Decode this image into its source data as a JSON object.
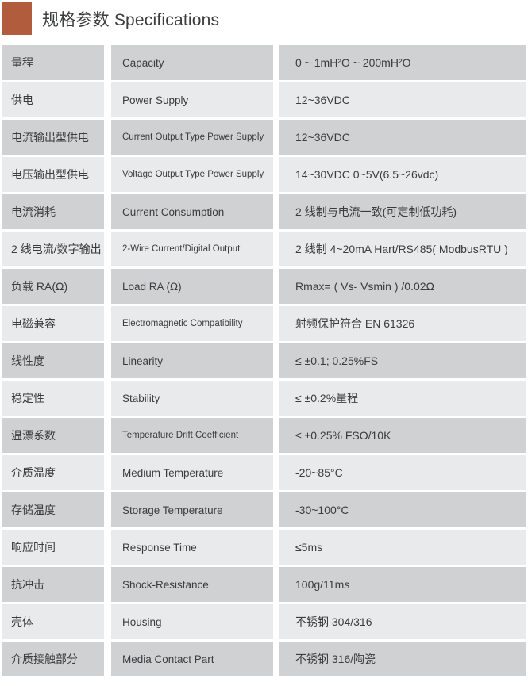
{
  "header": {
    "title": "规格参数 Specifications",
    "accent_color": "#b05c3d"
  },
  "table": {
    "columns": [
      "chinese_label",
      "english_label",
      "value"
    ],
    "colors": {
      "row_dark": "#d0d1d3",
      "row_light": "#e9eaeb",
      "text": "#3b3c3e"
    },
    "rows": [
      {
        "zh": "量程",
        "en": "Capacity",
        "value": "0 ~ 1mH²O ~ 200mH²O"
      },
      {
        "zh": "供电",
        "en": "Power Supply",
        "value": "12~36VDC"
      },
      {
        "zh": "电流输出型供电",
        "en": "Current Output Type Power Supply",
        "value": "12~36VDC"
      },
      {
        "zh": "电压输出型供电",
        "en": "Voltage Output Type Power Supply",
        "value": "14~30VDC 0~5V(6.5~26vdc)"
      },
      {
        "zh": "电流消耗",
        "en": "Current Consumption",
        "value": "2 线制与电流一致(可定制低功耗)"
      },
      {
        "zh": "2 线电流/数字输出",
        "en": "2-Wire Current/Digital Output",
        "value": "2 线制 4~20mA Hart/RS485( ModbusRTU )"
      },
      {
        "zh": "负载 RA(Ω)",
        "en": "Load RA (Ω)",
        "value": "Rmax= ( Vs- Vsmin ) /0.02Ω"
      },
      {
        "zh": "电磁兼容",
        "en": "Electromagnetic Compatibility",
        "value": "射频保护符合 EN 61326"
      },
      {
        "zh": "线性度",
        "en": "Linearity",
        "value": "≤ ±0.1; 0.25%FS"
      },
      {
        "zh": "稳定性",
        "en": "Stability",
        "value": "≤ ±0.2%量程"
      },
      {
        "zh": "温漂系数",
        "en": "Temperature Drift Coefficient",
        "value": "≤ ±0.25% FSO/10K"
      },
      {
        "zh": "介质温度",
        "en": "Medium Temperature",
        "value": "-20~85°C"
      },
      {
        "zh": "存储温度",
        "en": "Storage Temperature",
        "value": "-30~100°C"
      },
      {
        "zh": "响应时间",
        "en": "Response Time",
        "value": "≤5ms"
      },
      {
        "zh": "抗冲击",
        "en": "Shock-Resistance",
        "value": "100g/11ms"
      },
      {
        "zh": "壳体",
        "en": "Housing",
        "value": "不锈钢 304/316"
      },
      {
        "zh": "介质接触部分",
        "en": "Media Contact Part",
        "value": "不锈钢 316/陶瓷"
      }
    ]
  }
}
